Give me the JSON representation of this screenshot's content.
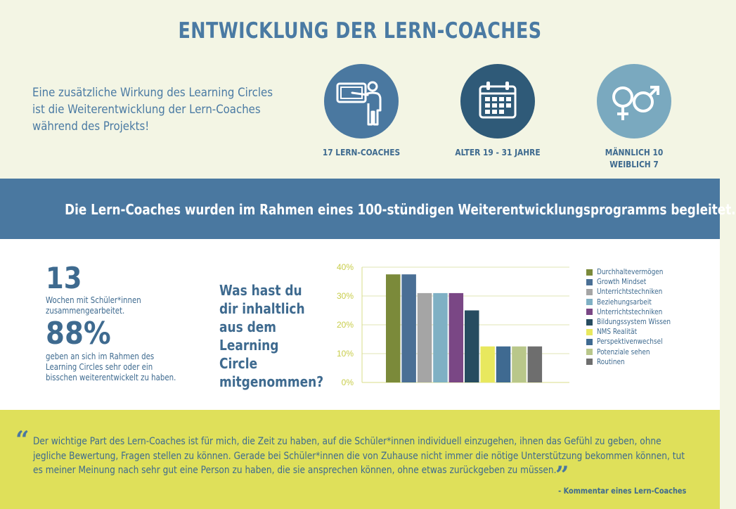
{
  "header": {
    "title": "ENTWICKLUNG DER LERN-COACHES"
  },
  "intro": {
    "line1": "Eine zusätzliche Wirkung des Learning Circles",
    "line2": "ist die Weiterentwicklung der Lern-Coaches",
    "line3": "während des Projekts!"
  },
  "stats": {
    "coaches": "17 LERN-COACHES",
    "age": "ALTER 19 - 31 JAHRE",
    "male": "MÄNNLICH 10",
    "female": "WEIBLICH 7"
  },
  "icons": {
    "teacher": "teacher-board-icon",
    "calendar": "calendar-icon",
    "gender": "gender-symbols-icon"
  },
  "band": {
    "text": "Die Lern-Coaches wurden im Rahmen eines 100-stündigen Weiterentwicklungsprogramms begleitet."
  },
  "weeks": {
    "number": "13",
    "text1": "Wochen mit Schüler*innen",
    "text2": "zusammengearbeitet."
  },
  "percent": {
    "number": "88%",
    "text1": "geben an sich im Rahmen des",
    "text2": "Learning Circles sehr oder ein",
    "text3": "bisschen weiterentwickelt zu haben."
  },
  "question": {
    "line1": "Was hast du",
    "line2": "dir inhaltlich",
    "line3": "aus dem",
    "line4": "Learning Circle",
    "line5": "mitgenommen?"
  },
  "colors": {
    "blue": "#4a78a0",
    "darkblue": "#2f5a78",
    "lightblue": "#7aa9bf",
    "yellow": "#dfe05a",
    "cream": "#f3f5e4"
  },
  "chart_data": {
    "type": "bar",
    "ylim": [
      0,
      40
    ],
    "yticks": [
      "0%",
      "10%",
      "20%",
      "30%",
      "40%"
    ],
    "grid": true,
    "legend": "right",
    "series": [
      {
        "name": "Durchhaltevermögen",
        "value": 37.5,
        "color": "#7b8a3a"
      },
      {
        "name": "Growth Mindset",
        "value": 37.5,
        "color": "#4a6f95"
      },
      {
        "name": "Unterrichtstechniken",
        "value": 31,
        "color": "#a5a5a5"
      },
      {
        "name": "Beziehungsarbeit",
        "value": 31,
        "color": "#7fb0c4"
      },
      {
        "name": "Unterrichtstechniken",
        "value": 31,
        "color": "#7a4785"
      },
      {
        "name": "Bildungssystem Wissen",
        "value": 25,
        "color": "#274c60"
      },
      {
        "name": "NMS Realität",
        "value": 12.5,
        "color": "#e8e85e"
      },
      {
        "name": "Perspektivenwechsel",
        "value": 12.5,
        "color": "#3f6a91"
      },
      {
        "name": "Potenziale sehen",
        "value": 12.5,
        "color": "#b9c78a"
      },
      {
        "name": "Routinen",
        "value": 12.5,
        "color": "#6e6e6e"
      }
    ]
  },
  "quote": {
    "line1": "Der wichtige Part des Lern-Coaches ist für mich, die Zeit zu haben, auf die Schüler*innen individuell einzugehen, ihnen das Gefühl zu geben, ohne",
    "line2": "jegliche Bewertung, Fragen stellen zu können. Gerade bei Schüler*innen die von Zuhause nicht immer die nötige Unterstützung bekommen können, tut",
    "line3": "es meiner Meinung nach sehr gut eine Person zu haben, die sie ansprechen können, ohne etwas zurückgeben zu müssen.",
    "attribution": "- Kommentar eines Lern-Coaches"
  }
}
